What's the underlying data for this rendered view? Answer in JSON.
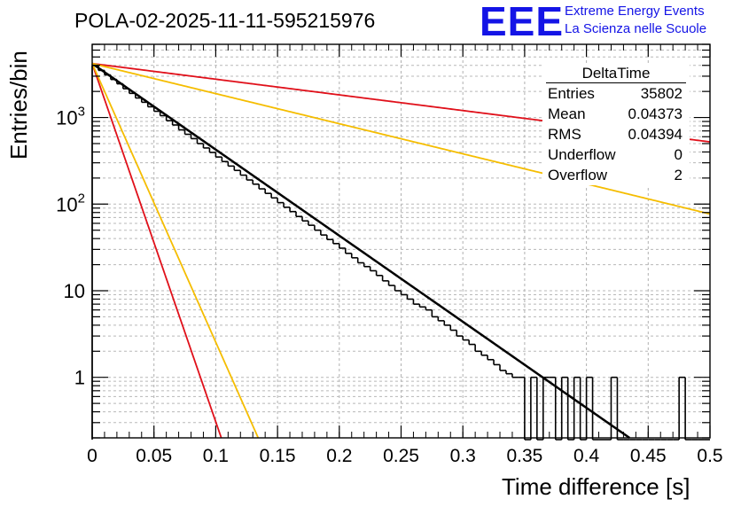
{
  "title": "POLA-02-2025-11-11-595215976",
  "logo": {
    "mark": "EEE",
    "line1": "Extreme Energy Events",
    "line2": "La Scienza nelle Scuole",
    "color": "#1414e6"
  },
  "stats": {
    "name": "DeltaTime",
    "rows": [
      {
        "label": "Entries",
        "value": "35802"
      },
      {
        "label": "Mean",
        "value": "0.04373"
      },
      {
        "label": "RMS",
        "value": "0.04394"
      },
      {
        "label": "Underflow",
        "value": "0"
      },
      {
        "label": "Overflow",
        "value": "2"
      }
    ]
  },
  "chart_data": {
    "type": "histogram",
    "title": "POLA-02-2025-11-11-595215976",
    "xlabel": "Time difference [s]",
    "ylabel": "Entries/bin",
    "xlim": [
      0,
      0.5
    ],
    "ylim": [
      0.2,
      7000
    ],
    "yscale": "log",
    "grid": true,
    "bin_width": 0.005,
    "x_ticks": [
      "0",
      "0.05",
      "0.1",
      "0.15",
      "0.2",
      "0.25",
      "0.3",
      "0.35",
      "0.4",
      "0.45",
      "0.5"
    ],
    "y_ticks": [
      {
        "value": 1,
        "base": "1",
        "exp": ""
      },
      {
        "value": 10,
        "base": "10",
        "exp": ""
      },
      {
        "value": 100,
        "base": "10",
        "exp": "2"
      },
      {
        "value": 1000,
        "base": "10",
        "exp": "3"
      }
    ],
    "bins": [
      {
        "x": 0.0,
        "y": 4000
      },
      {
        "x": 0.005,
        "y": 3500
      },
      {
        "x": 0.01,
        "y": 3100
      },
      {
        "x": 0.015,
        "y": 2750
      },
      {
        "x": 0.02,
        "y": 2450
      },
      {
        "x": 0.025,
        "y": 2150
      },
      {
        "x": 0.03,
        "y": 1900
      },
      {
        "x": 0.035,
        "y": 1680
      },
      {
        "x": 0.04,
        "y": 1500
      },
      {
        "x": 0.045,
        "y": 1330
      },
      {
        "x": 0.05,
        "y": 1180
      },
      {
        "x": 0.055,
        "y": 1050
      },
      {
        "x": 0.06,
        "y": 920
      },
      {
        "x": 0.065,
        "y": 820
      },
      {
        "x": 0.07,
        "y": 720
      },
      {
        "x": 0.075,
        "y": 640
      },
      {
        "x": 0.08,
        "y": 570
      },
      {
        "x": 0.085,
        "y": 500
      },
      {
        "x": 0.09,
        "y": 445
      },
      {
        "x": 0.095,
        "y": 395
      },
      {
        "x": 0.1,
        "y": 350
      },
      {
        "x": 0.105,
        "y": 310
      },
      {
        "x": 0.11,
        "y": 275
      },
      {
        "x": 0.115,
        "y": 245
      },
      {
        "x": 0.12,
        "y": 216
      },
      {
        "x": 0.125,
        "y": 190
      },
      {
        "x": 0.13,
        "y": 170
      },
      {
        "x": 0.135,
        "y": 150
      },
      {
        "x": 0.14,
        "y": 133
      },
      {
        "x": 0.145,
        "y": 118
      },
      {
        "x": 0.15,
        "y": 104
      },
      {
        "x": 0.155,
        "y": 92
      },
      {
        "x": 0.16,
        "y": 82
      },
      {
        "x": 0.165,
        "y": 72
      },
      {
        "x": 0.17,
        "y": 64
      },
      {
        "x": 0.175,
        "y": 57
      },
      {
        "x": 0.18,
        "y": 50
      },
      {
        "x": 0.185,
        "y": 44
      },
      {
        "x": 0.19,
        "y": 39
      },
      {
        "x": 0.195,
        "y": 35
      },
      {
        "x": 0.2,
        "y": 31
      },
      {
        "x": 0.205,
        "y": 27
      },
      {
        "x": 0.21,
        "y": 24
      },
      {
        "x": 0.215,
        "y": 21
      },
      {
        "x": 0.22,
        "y": 19
      },
      {
        "x": 0.225,
        "y": 17
      },
      {
        "x": 0.23,
        "y": 15
      },
      {
        "x": 0.235,
        "y": 13
      },
      {
        "x": 0.24,
        "y": 11.5
      },
      {
        "x": 0.245,
        "y": 10
      },
      {
        "x": 0.25,
        "y": 9
      },
      {
        "x": 0.255,
        "y": 8
      },
      {
        "x": 0.26,
        "y": 7
      },
      {
        "x": 0.265,
        "y": 6.5
      },
      {
        "x": 0.27,
        "y": 6
      },
      {
        "x": 0.275,
        "y": 5
      },
      {
        "x": 0.28,
        "y": 4.5
      },
      {
        "x": 0.285,
        "y": 4
      },
      {
        "x": 0.29,
        "y": 3.5
      },
      {
        "x": 0.295,
        "y": 3
      },
      {
        "x": 0.3,
        "y": 2.7
      },
      {
        "x": 0.305,
        "y": 2.4
      },
      {
        "x": 0.31,
        "y": 2
      },
      {
        "x": 0.315,
        "y": 1.8
      },
      {
        "x": 0.32,
        "y": 1.6
      },
      {
        "x": 0.325,
        "y": 1.4
      },
      {
        "x": 0.33,
        "y": 1.2
      },
      {
        "x": 0.335,
        "y": 1.1
      },
      {
        "x": 0.34,
        "y": 1
      },
      {
        "x": 0.345,
        "y": 1
      },
      {
        "x": 0.35,
        "y": 0
      },
      {
        "x": 0.355,
        "y": 1
      },
      {
        "x": 0.36,
        "y": 0
      },
      {
        "x": 0.365,
        "y": 1
      },
      {
        "x": 0.37,
        "y": 1
      },
      {
        "x": 0.375,
        "y": 0
      },
      {
        "x": 0.38,
        "y": 1
      },
      {
        "x": 0.385,
        "y": 0
      },
      {
        "x": 0.39,
        "y": 1
      },
      {
        "x": 0.395,
        "y": 0
      },
      {
        "x": 0.4,
        "y": 1
      },
      {
        "x": 0.405,
        "y": 0
      },
      {
        "x": 0.41,
        "y": 0
      },
      {
        "x": 0.415,
        "y": 0
      },
      {
        "x": 0.42,
        "y": 1
      },
      {
        "x": 0.425,
        "y": 0
      },
      {
        "x": 0.43,
        "y": 0
      },
      {
        "x": 0.435,
        "y": 0
      },
      {
        "x": 0.44,
        "y": 0
      },
      {
        "x": 0.445,
        "y": 0
      },
      {
        "x": 0.45,
        "y": 0
      },
      {
        "x": 0.455,
        "y": 0
      },
      {
        "x": 0.46,
        "y": 0
      },
      {
        "x": 0.465,
        "y": 0
      },
      {
        "x": 0.47,
        "y": 0
      },
      {
        "x": 0.475,
        "y": 1
      },
      {
        "x": 0.48,
        "y": 0
      },
      {
        "x": 0.485,
        "y": 0
      },
      {
        "x": 0.49,
        "y": 0
      },
      {
        "x": 0.495,
        "y": 0
      }
    ],
    "fits": [
      {
        "name": "fit",
        "color": "#000000",
        "amplitude": 4200,
        "tau": 0.0437,
        "width": 2.5
      },
      {
        "name": "red-slow",
        "color": "#e0101a",
        "amplitude": 4200,
        "tau": 0.24,
        "width": 1.8
      },
      {
        "name": "yellow-slow",
        "color": "#f5bd00",
        "amplitude": 4200,
        "tau": 0.125,
        "width": 1.8
      },
      {
        "name": "red-fast",
        "color": "#e0101a",
        "amplitude": 4200,
        "tau": 0.0105,
        "width": 1.8
      },
      {
        "name": "yellow-fast",
        "color": "#f5bd00",
        "amplitude": 4200,
        "tau": 0.0135,
        "width": 1.8
      }
    ]
  }
}
